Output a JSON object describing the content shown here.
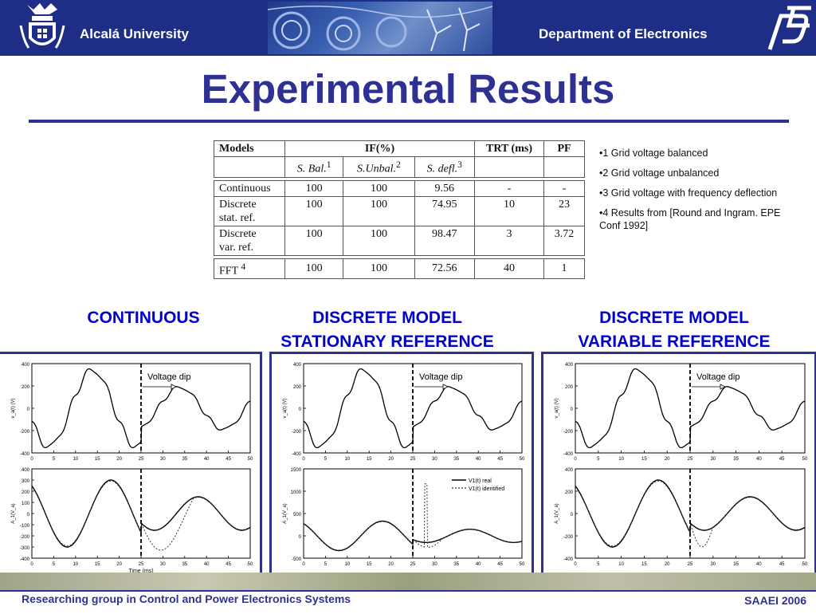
{
  "header": {
    "university": "Alcalá University",
    "department": "Department of Electronics"
  },
  "slide_title": "Experimental Results",
  "table": {
    "headers": {
      "models": "Models",
      "if": "IF(%)",
      "trt": "TRT  (ms)",
      "pf": "PF"
    },
    "subheaders": [
      {
        "text": "S. Bal.",
        "sup": "1"
      },
      {
        "text": "S.Unbal.",
        "sup": "2"
      },
      {
        "text": "S. defl.",
        "sup": "3"
      }
    ],
    "rows": [
      {
        "model_l1": "Continuous",
        "model_l2": "",
        "sup": "",
        "sbal": "100",
        "sunbal": "100",
        "sdefl": "9.56",
        "trt": "-",
        "pf": "-"
      },
      {
        "model_l1": "Discrete",
        "model_l2": "stat. ref.",
        "sup": "",
        "sbal": "100",
        "sunbal": "100",
        "sdefl": "74.95",
        "trt": "10",
        "pf": "23"
      },
      {
        "model_l1": "Discrete",
        "model_l2": "var. ref.",
        "sup": "",
        "sbal": "100",
        "sunbal": "100",
        "sdefl": "98.47",
        "trt": "3",
        "pf": "3.72"
      },
      {
        "model_l1": "FFT",
        "model_l2": "",
        "sup": "4",
        "sbal": "100",
        "sunbal": "100",
        "sdefl": "72.56",
        "trt": "40",
        "pf": "1"
      }
    ]
  },
  "notes": [
    "•1  Grid voltage balanced",
    "•2 Grid voltage unbalanced",
    "•3 Grid voltage with frequency deflection",
    "•4 Results from [Round and Ingram. EPE Conf 1992]"
  ],
  "sections": [
    {
      "line1": "CONTINUOUS",
      "line2": ""
    },
    {
      "line1": "DISCRETE MODEL",
      "line2": "STATIONARY REFERENCE"
    },
    {
      "line1": "DISCRETE MODEL",
      "line2": "VARIABLE REFERENCE"
    }
  ],
  "chart_data": [
    {
      "type": "line",
      "panel": "continuous",
      "top": {
        "ylabel": "v_a(t) (V)",
        "ylim": [
          -400,
          400
        ],
        "yticks": [
          400,
          200,
          0,
          -200,
          -400
        ],
        "xticks": [
          0,
          5,
          10,
          15,
          20,
          25,
          30,
          35,
          40,
          45,
          50
        ],
        "annotation": "Voltage dip"
      },
      "bottom": {
        "ylabel": "A_1(V_a)",
        "xlabel": "Time (ms)",
        "ylim": [
          -400,
          400
        ],
        "yticks": [
          400,
          300,
          200,
          100,
          0,
          -100,
          -200,
          -300,
          -400
        ],
        "xticks": [
          0,
          5,
          10,
          15,
          20,
          25,
          30,
          35,
          40,
          45,
          50
        ],
        "legend": []
      }
    },
    {
      "type": "line",
      "panel": "discrete-stationary",
      "top": {
        "ylabel": "v_a(t) (V)",
        "ylim": [
          -400,
          400
        ],
        "yticks": [
          400,
          200,
          0,
          -200,
          -400
        ],
        "xticks": [
          0,
          5,
          10,
          15,
          20,
          25,
          30,
          35,
          40,
          45,
          50
        ],
        "annotation": "Voltage dip"
      },
      "bottom": {
        "ylabel": "A_1(V_a)",
        "xlabel": "",
        "ylim": [
          -500,
          1500
        ],
        "yticks": [
          1500,
          1000,
          500,
          0,
          -500
        ],
        "xticks": [
          0,
          5,
          10,
          15,
          20,
          25,
          30,
          35,
          40,
          45,
          50
        ],
        "legend": [
          "V1(t) real",
          "V1(t) identified"
        ]
      }
    },
    {
      "type": "line",
      "panel": "discrete-variable",
      "top": {
        "ylabel": "v_a(t) (V)",
        "ylim": [
          -400,
          400
        ],
        "yticks": [
          400,
          200,
          0,
          -200,
          -400
        ],
        "xticks": [
          0,
          5,
          10,
          15,
          20,
          25,
          30,
          35,
          40,
          45,
          50
        ],
        "annotation": "Voltage dip"
      },
      "bottom": {
        "ylabel": "A_1(V_a)",
        "xlabel": "",
        "ylim": [
          -400,
          400
        ],
        "yticks": [
          400,
          200,
          0,
          -200,
          -400
        ],
        "xticks": [
          0,
          5,
          10,
          15,
          20,
          25,
          30,
          35,
          40,
          45,
          50
        ],
        "legend": []
      }
    }
  ],
  "footer": {
    "left": "Researching group in Control and Power Electronics Systems",
    "right": "SAAEI 2006"
  }
}
